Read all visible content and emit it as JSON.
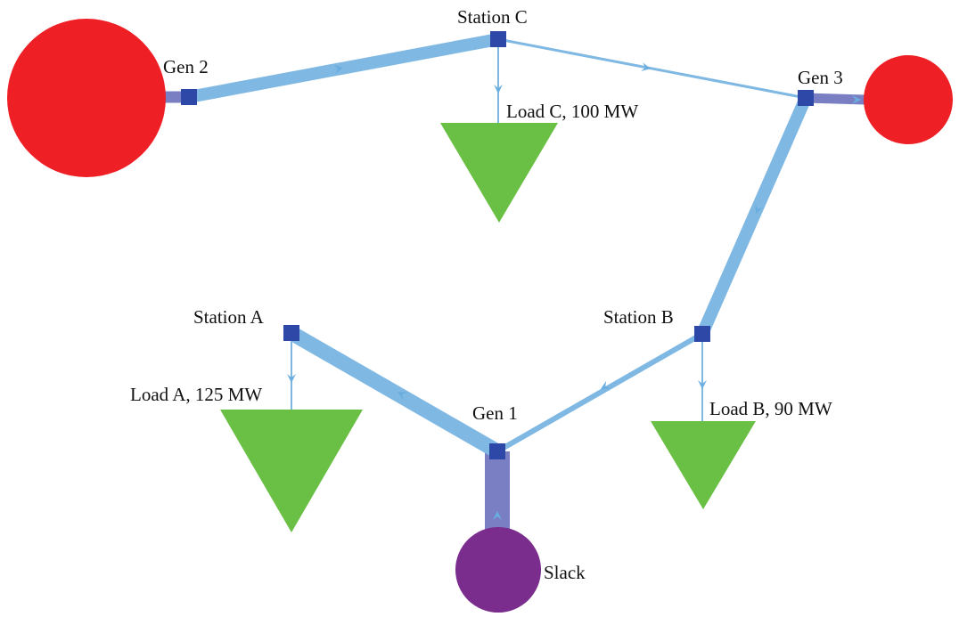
{
  "colors": {
    "generator": "#ee1f25",
    "slack": "#7b2d8e",
    "load": "#6abf45",
    "bus": "#2e48a8",
    "line": "#7fb8e3",
    "line_dark": "#6aaee0",
    "gen_link": "#7a7fc4"
  },
  "labels": {
    "station_a": "Station A",
    "station_b": "Station B",
    "station_c": "Station C",
    "gen_1": "Gen 1",
    "gen_2": "Gen 2",
    "gen_3": "Gen 3",
    "load_a": "Load A, 125 MW",
    "load_b": "Load B, 90 MW",
    "load_c": "Load C, 100 MW",
    "slack": "Slack"
  }
}
